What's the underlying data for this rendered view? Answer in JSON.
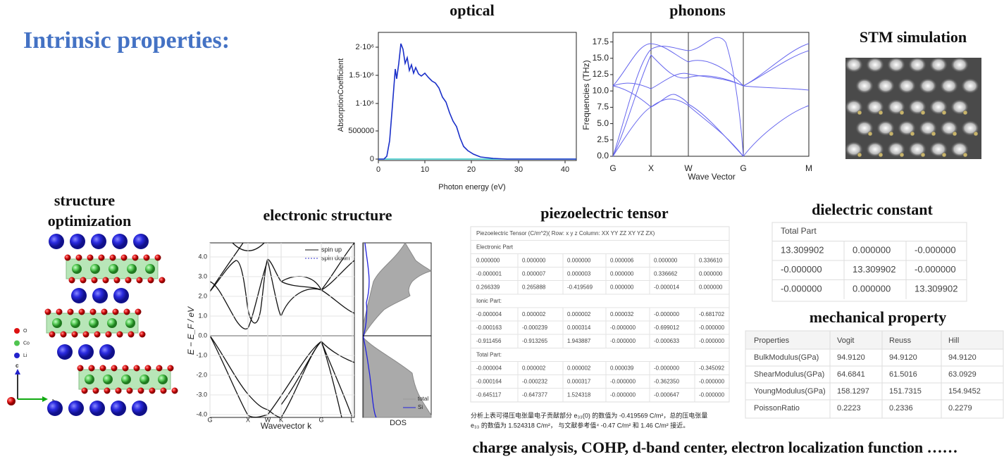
{
  "title": "Intrinsic properties:",
  "optical": {
    "title": "optical",
    "xlabel": "Photon energy (eV)",
    "ylabel": "AbsorptionCoefficient",
    "xticks": [
      "0",
      "10",
      "20",
      "30",
      "40"
    ],
    "yticks": [
      "0",
      "500000",
      "1·10⁶",
      "1.5·10⁶",
      "2·10⁶"
    ]
  },
  "phonons": {
    "title": "phonons",
    "xlabel": "Wave Vector",
    "ylabel": "Frequencies (THz)",
    "xticks": [
      "G",
      "X",
      "W",
      "G",
      "M"
    ],
    "yticks": [
      "0.0",
      "2.5",
      "5.0",
      "7.5",
      "10.0",
      "12.5",
      "15.0",
      "17.5"
    ]
  },
  "stm": {
    "title": "STM simulation"
  },
  "structure": {
    "title": [
      "structure",
      "optimization"
    ],
    "legend": [
      "O",
      "Co",
      "Li"
    ],
    "axes": [
      "c",
      "b"
    ]
  },
  "electronic": {
    "title": "electronic structure",
    "xlabel": "Wavevector k",
    "ylabel": "E − E_F / eV",
    "xticks": [
      "G",
      "X",
      "W",
      "K",
      "G",
      "L"
    ],
    "yticks": [
      "4.0",
      "3.0",
      "2.0",
      "1.0",
      "0.0",
      "-1.0",
      "-2.0",
      "-3.0",
      "-4.0"
    ],
    "legend": [
      "spin up",
      "spin down"
    ],
    "dos_label": "DOS",
    "dos_legend": [
      "total",
      "Si"
    ]
  },
  "piezo": {
    "title": "piezoelectric tensor",
    "caption": "Piezoelectric Tensor (C/m^2)( Row: x y z Column: XX YY ZZ XY YZ ZX)",
    "sections": [
      {
        "name": "Electronic Part",
        "rows": [
          [
            "0.000000",
            "0.000000",
            "0.000000",
            "0.000006",
            "0.000000",
            "0.336610"
          ],
          [
            "-0.000001",
            "0.000007",
            "0.000003",
            "0.000000",
            "0.336662",
            "0.000000"
          ],
          [
            "0.266339",
            "0.265888",
            "-0.419569",
            "0.000000",
            "-0.000014",
            "0.000000"
          ]
        ]
      },
      {
        "name": "Ionic Part:",
        "rows": [
          [
            "-0.000004",
            "0.000002",
            "0.000002",
            "0.000032",
            "-0.000000",
            "-0.681702"
          ],
          [
            "-0.000163",
            "-0.000239",
            "0.000314",
            "-0.000000",
            "-0.699012",
            "-0.000000"
          ],
          [
            "-0.911456",
            "-0.913265",
            "1.943887",
            "-0.000000",
            "-0.000633",
            "-0.000000"
          ]
        ]
      },
      {
        "name": "Total Part:",
        "rows": [
          [
            "-0.000004",
            "0.000002",
            "0.000002",
            "0.000039",
            "-0.000000",
            "-0.345092"
          ],
          [
            "-0.000164",
            "-0.000232",
            "0.000317",
            "-0.000000",
            "-0.362350",
            "-0.000000"
          ],
          [
            "-0.645117",
            "-0.647377",
            "1.524318",
            "-0.000000",
            "-0.000647",
            "-0.000000"
          ]
        ]
      }
    ],
    "note": [
      "分析上表可得压电张量电子贡献部分 e₃₃(0) 的数值为 -0.419569 C/m²，总的压电张量",
      "e₃₃ 的数值为 1.524318 C/m²， 与文献参考值⁴ -0.47 C/m² 和 1.46 C/m² 接近。"
    ]
  },
  "dielectric": {
    "title": "dielectric constant",
    "caption": "Total Part",
    "rows": [
      [
        "13.309902",
        "0.000000",
        "-0.000000"
      ],
      [
        "-0.000000",
        "13.309902",
        "-0.000000"
      ],
      [
        "-0.000000",
        "0.000000",
        "13.309902"
      ]
    ]
  },
  "mechanical": {
    "title": "mechanical property",
    "header": [
      "Properties",
      "Vogit",
      "Reuss",
      "Hill"
    ],
    "rows": [
      [
        "BulkModulus(GPa)",
        "94.9120",
        "94.9120",
        "94.9120"
      ],
      [
        "ShearModulus(GPa)",
        "64.6841",
        "61.5016",
        "63.0929"
      ],
      [
        "YoungModulus(GPa)",
        "158.1297",
        "151.7315",
        "154.9452"
      ],
      [
        "PoissonRatio",
        "0.2223",
        "0.2336",
        "0.2279"
      ]
    ]
  },
  "footer": "charge analysis, COHP, d-band center, electron localization function ……"
}
